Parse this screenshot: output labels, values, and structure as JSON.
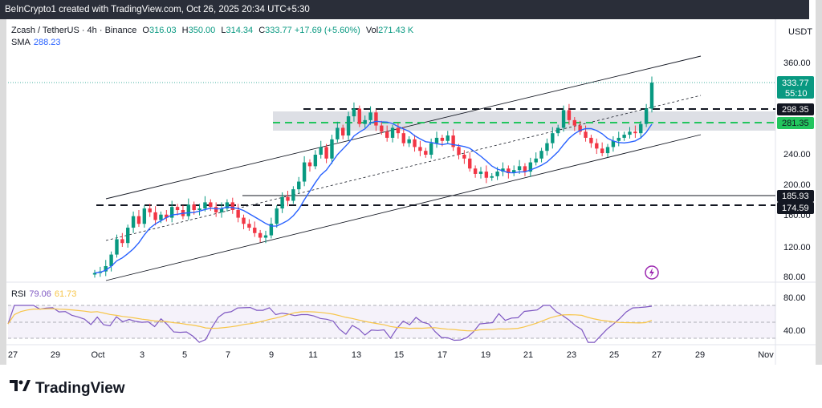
{
  "header": {
    "attribution": "BeInCrypto1 created with TradingView.com, Oct 26, 2025 20:34 UTC+5:30"
  },
  "symbol": {
    "title": "Zcash / TetherUS · 4h · Binance",
    "o_label": "O",
    "o": "316.03",
    "h_label": "H",
    "h": "350.00",
    "l_label": "L",
    "l": "314.34",
    "c_label": "C",
    "c": "333.77",
    "change": "+17.69 (+5.60%)",
    "vol_label": "Vol",
    "vol": "271.43 K"
  },
  "sma": {
    "label": "SMA",
    "value": "288.23"
  },
  "currency": "USDT",
  "rsi": {
    "label": "RSI",
    "value": "79.06",
    "ma": "61.73"
  },
  "price_axis": [
    "360.00",
    "240.00",
    "200.00",
    "160.00",
    "120.00",
    "80.00"
  ],
  "price_badges": {
    "last": "333.77",
    "countdown": "55:10",
    "r1": "298.35",
    "r2": "281.35",
    "s1": "185.93",
    "s2": "174.59"
  },
  "rsi_axis": [
    "80.00",
    "40.00"
  ],
  "time_axis": [
    "27",
    "29",
    "Oct",
    "3",
    "5",
    "7",
    "9",
    "11",
    "13",
    "15",
    "17",
    "19",
    "21",
    "23",
    "25",
    "27",
    "29",
    "Nov"
  ],
  "brand": {
    "name": "TradingView"
  },
  "colors": {
    "up": "#089981",
    "down": "#f23645",
    "sma": "#2962ff",
    "rsi": "#7e57c2",
    "rsi_ma": "#f7c548",
    "green_level": "#22c55e"
  },
  "chart_data": {
    "type": "candlestick",
    "closes": [
      86,
      88,
      95,
      110,
      130,
      125,
      145,
      160,
      150,
      170,
      165,
      155,
      162,
      158,
      172,
      168,
      160,
      175,
      168,
      170,
      178,
      172,
      165,
      170,
      178,
      168,
      158,
      150,
      145,
      138,
      132,
      135,
      150,
      170,
      185,
      180,
      195,
      205,
      230,
      225,
      240,
      250,
      235,
      260,
      275,
      265,
      290,
      300,
      280,
      285,
      295,
      278,
      270,
      262,
      275,
      268,
      255,
      260,
      250,
      245,
      240,
      255,
      262,
      258,
      265,
      250,
      240,
      235,
      222,
      215,
      218,
      210,
      212,
      218,
      222,
      216,
      220,
      225,
      218,
      230,
      235,
      245,
      255,
      268,
      275,
      298,
      285,
      278,
      270,
      262,
      255,
      248,
      242,
      250,
      258,
      262,
      266,
      270,
      268,
      280,
      300,
      333.77
    ],
    "price_levels": {
      "last": 333.77,
      "r1": 298.35,
      "r2": 281.35,
      "s1": 185.93,
      "s2": 174.59
    },
    "rsi_last": 79.06,
    "rsi_ma_last": 61.73
  }
}
